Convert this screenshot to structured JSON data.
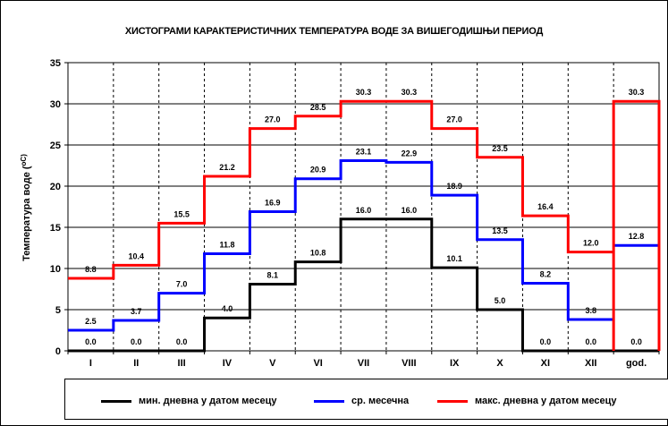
{
  "title": "ХИСТОГРАМИ КАРАКТЕРИСТИЧНИХ ТЕМПЕРАТУРА ВОДЕ ЗА ВИШЕГОДИШЊИ ПЕРИОД",
  "legend": {
    "min_label": "мин. дневна у датом месецу",
    "avg_label": "ср. месечна",
    "max_label": "макс. дневна у датом месецу"
  },
  "chart_data": {
    "type": "line",
    "step": true,
    "title": "ХИСТОГРАМИ КАРАКТЕРИСТИЧНИХ ТЕМПЕРАТУРА ВОДЕ ЗА ВИШЕГОДИШЊИ ПЕРИОД",
    "ylabel": "Температура воде (",
    "ylabel_unit": "оC)",
    "ylim": [
      0,
      35
    ],
    "yticks": [
      0,
      5,
      10,
      15,
      20,
      25,
      30,
      35
    ],
    "grid": true,
    "legend_position": "bottom",
    "categories": [
      "I",
      "II",
      "III",
      "IV",
      "V",
      "VI",
      "VII",
      "VIII",
      "IX",
      "X",
      "XI",
      "XII",
      "god."
    ],
    "series": [
      {
        "name": "мин. дневна у датом месецу",
        "color": "#000000",
        "values": [
          0.0,
          0.0,
          0.0,
          4.0,
          8.1,
          10.8,
          16.0,
          16.0,
          10.1,
          5.0,
          0.0,
          0.0,
          0.0
        ],
        "labels": [
          "0.0",
          "0.0",
          "0.0",
          "4.0",
          "8.1",
          "10.8",
          "16.0",
          "16.0",
          "10.1",
          "5.0",
          "0.0",
          "0.0",
          "0.0"
        ]
      },
      {
        "name": "ср. месечна",
        "color": "#0000ff",
        "values": [
          2.5,
          3.7,
          7.0,
          11.8,
          16.9,
          20.9,
          23.1,
          22.9,
          18.9,
          13.5,
          8.2,
          3.8,
          12.8
        ],
        "labels": [
          "2.5",
          "3.7",
          "7.0",
          "11.8",
          "16.9",
          "20.9",
          "23.1",
          "22.9",
          "18.9",
          "13.5",
          "8.2",
          "3.8",
          "12.8"
        ]
      },
      {
        "name": "макс. дневна у датом месецу",
        "color": "#ff0000",
        "values": [
          8.8,
          10.4,
          15.5,
          21.2,
          27.0,
          28.5,
          30.3,
          30.3,
          27.0,
          23.5,
          16.4,
          12.0,
          30.3
        ],
        "labels": [
          "8.8",
          "10.4",
          "15.5",
          "21.2",
          "27.0",
          "28.5",
          "30.3",
          "30.3",
          "27.0",
          "23.5",
          "16.4",
          "12.0",
          "30.3"
        ]
      }
    ]
  }
}
